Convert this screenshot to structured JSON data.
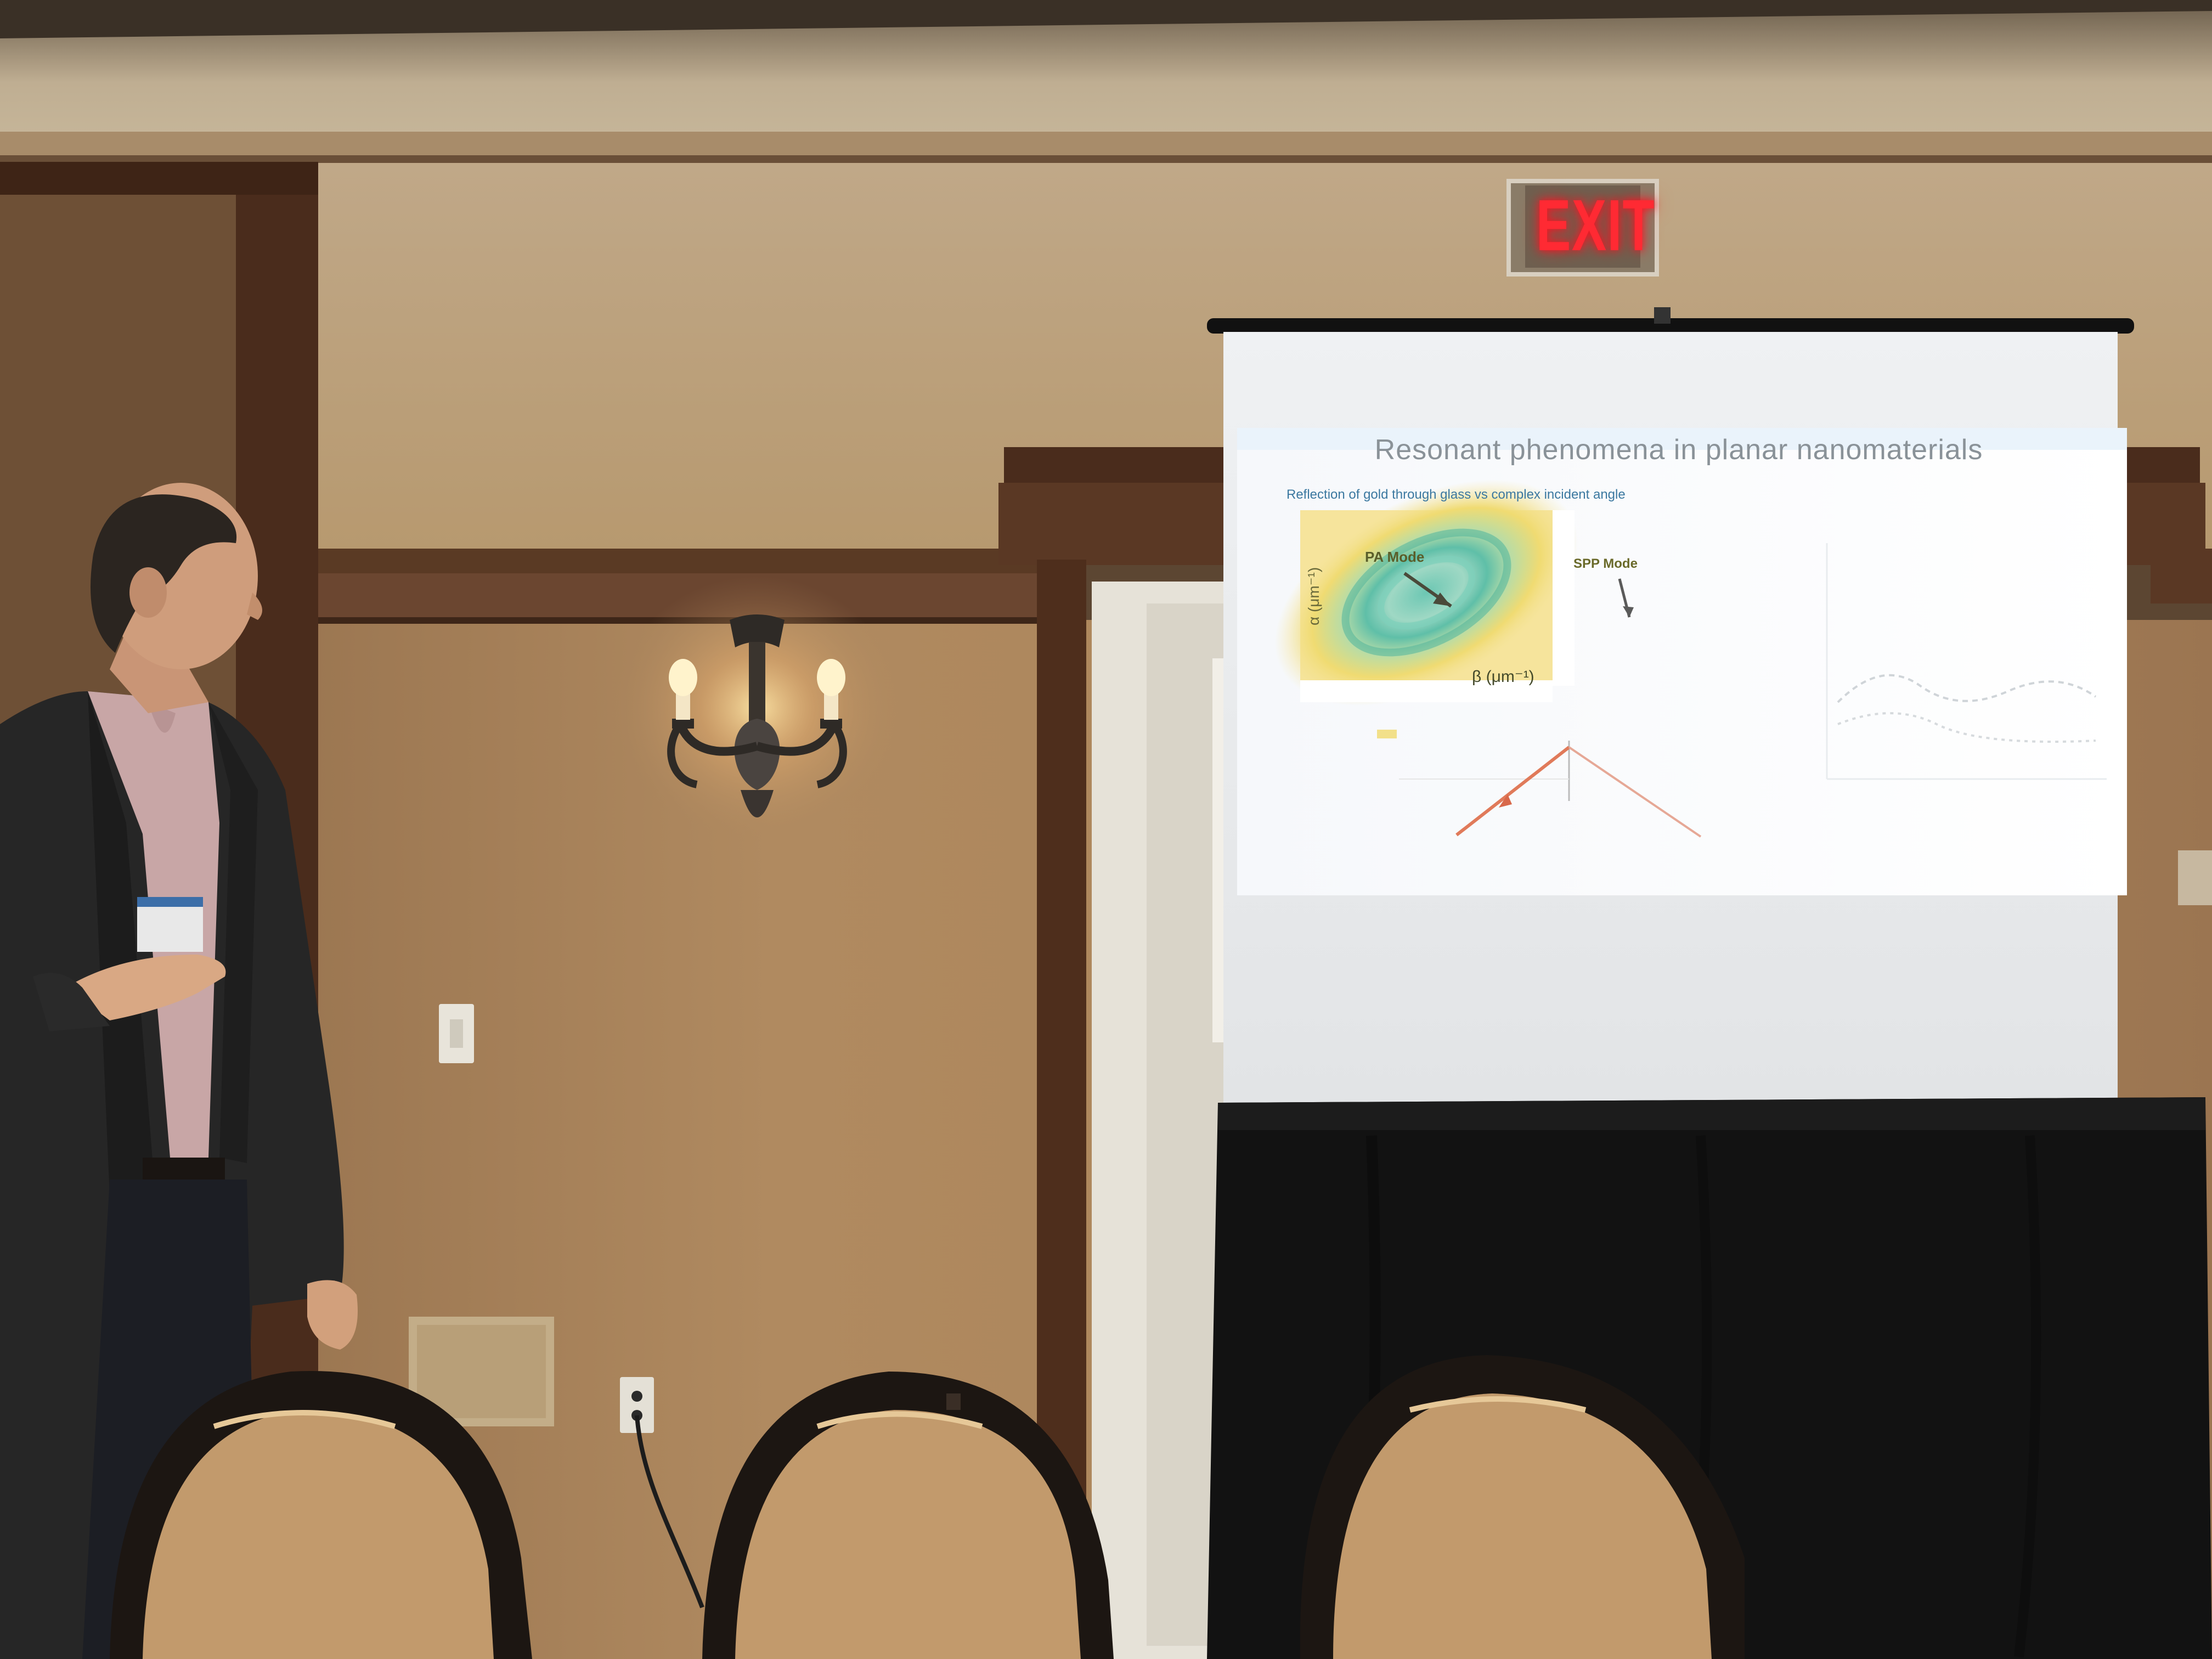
{
  "exit_sign": {
    "text": "EXIT",
    "color": "#ff2a33"
  },
  "slide": {
    "title": "Resonant phenomena in planar nanomaterials",
    "subtitle": "Reflection of gold through glass vs complex incident angle",
    "labels": {
      "pa_mode": "PA Mode",
      "spp_mode": "SPP Mode",
      "beta_axis": "β (μm⁻¹)",
      "alpha_axis": "α (μm⁻¹)"
    }
  },
  "colors": {
    "wall": "#a97f55",
    "wainscot": "#a57c52",
    "wood_trim": "#4a2c1c",
    "ceiling": "#c8b89c",
    "screen": "#eef0f2",
    "table_cloth": "#121212",
    "chair_frame": "#1c1612",
    "chair_fabric": "#c29a6c",
    "plot_yellow": "#f3dc6a",
    "plot_teal": "#62c6b0"
  }
}
